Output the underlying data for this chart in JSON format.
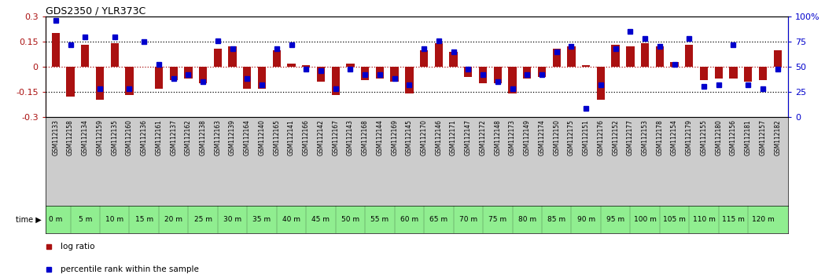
{
  "title": "GDS2350 / YLR373C",
  "samples": [
    "GSM112133",
    "GSM112158",
    "GSM112134",
    "GSM112159",
    "GSM112135",
    "GSM112160",
    "GSM112136",
    "GSM112161",
    "GSM112137",
    "GSM112162",
    "GSM112138",
    "GSM112163",
    "GSM112139",
    "GSM112164",
    "GSM112140",
    "GSM112165",
    "GSM112141",
    "GSM112166",
    "GSM112142",
    "GSM112167",
    "GSM112143",
    "GSM112168",
    "GSM112144",
    "GSM112169",
    "GSM112145",
    "GSM112170",
    "GSM112146",
    "GSM112171",
    "GSM112147",
    "GSM112172",
    "GSM112148",
    "GSM112173",
    "GSM112149",
    "GSM112174",
    "GSM112150",
    "GSM112175",
    "GSM112151",
    "GSM112176",
    "GSM112152",
    "GSM112177",
    "GSM112153",
    "GSM112178",
    "GSM112154",
    "GSM112179",
    "GSM112155",
    "GSM112180",
    "GSM112156",
    "GSM112181",
    "GSM112157",
    "GSM112182"
  ],
  "log_ratio": [
    0.2,
    -0.18,
    0.13,
    -0.2,
    0.14,
    -0.17,
    0.0,
    -0.13,
    -0.08,
    -0.07,
    -0.1,
    0.11,
    0.12,
    -0.13,
    -0.13,
    0.1,
    0.02,
    0.01,
    -0.09,
    -0.17,
    0.02,
    -0.08,
    -0.07,
    -0.09,
    -0.16,
    0.1,
    0.14,
    0.09,
    -0.06,
    -0.1,
    -0.1,
    -0.16,
    -0.07,
    -0.06,
    0.11,
    0.12,
    0.01,
    -0.2,
    0.13,
    0.12,
    0.14,
    0.12,
    0.03,
    0.13,
    -0.08,
    -0.07,
    -0.07,
    -0.09,
    -0.08,
    0.1
  ],
  "percentile": [
    96,
    72,
    80,
    28,
    80,
    28,
    75,
    52,
    38,
    42,
    35,
    76,
    68,
    38,
    32,
    68,
    72,
    48,
    46,
    28,
    48,
    42,
    42,
    38,
    32,
    68,
    76,
    65,
    48,
    42,
    35,
    28,
    42,
    42,
    65,
    70,
    8,
    32,
    68,
    85,
    78,
    70,
    52,
    78,
    30,
    32,
    72,
    32,
    28,
    48
  ],
  "time_labels": [
    "0 m",
    "5 m",
    "10 m",
    "15 m",
    "20 m",
    "25 m",
    "30 m",
    "35 m",
    "40 m",
    "45 m",
    "50 m",
    "55 m",
    "60 m",
    "65 m",
    "70 m",
    "75 m",
    "80 m",
    "85 m",
    "90 m",
    "95 m",
    "100 m",
    "105 m",
    "110 m",
    "115 m",
    "120 m"
  ],
  "time_positions": [
    0,
    2,
    4,
    6,
    8,
    10,
    12,
    14,
    16,
    18,
    20,
    22,
    24,
    26,
    28,
    30,
    32,
    34,
    36,
    38,
    40,
    42,
    44,
    46,
    48
  ],
  "bar_color": "#aa1111",
  "dot_color": "#0000cc",
  "bg_color": "#ffffff",
  "ylim_left": [
    -0.3,
    0.3
  ],
  "ylim_right": [
    0,
    100
  ],
  "yticks_left": [
    -0.3,
    -0.15,
    0.0,
    0.15,
    0.3
  ],
  "ytick_labels_left": [
    "-0.3",
    "-0.15",
    "0",
    "0.15",
    "0.3"
  ],
  "yticks_right": [
    0,
    25,
    50,
    75,
    100
  ],
  "ytick_labels_right": [
    "0",
    "25",
    "50",
    "75",
    "100%"
  ],
  "hlines_dotted": [
    -0.15,
    0.15
  ],
  "hline_red_dotted": 0.0,
  "bar_width": 0.55,
  "legend_log_ratio": "log ratio",
  "legend_percentile": "percentile rank within the sample",
  "time_row_color": "#90EE90",
  "sample_row_color": "#cccccc",
  "n_samples": 50
}
